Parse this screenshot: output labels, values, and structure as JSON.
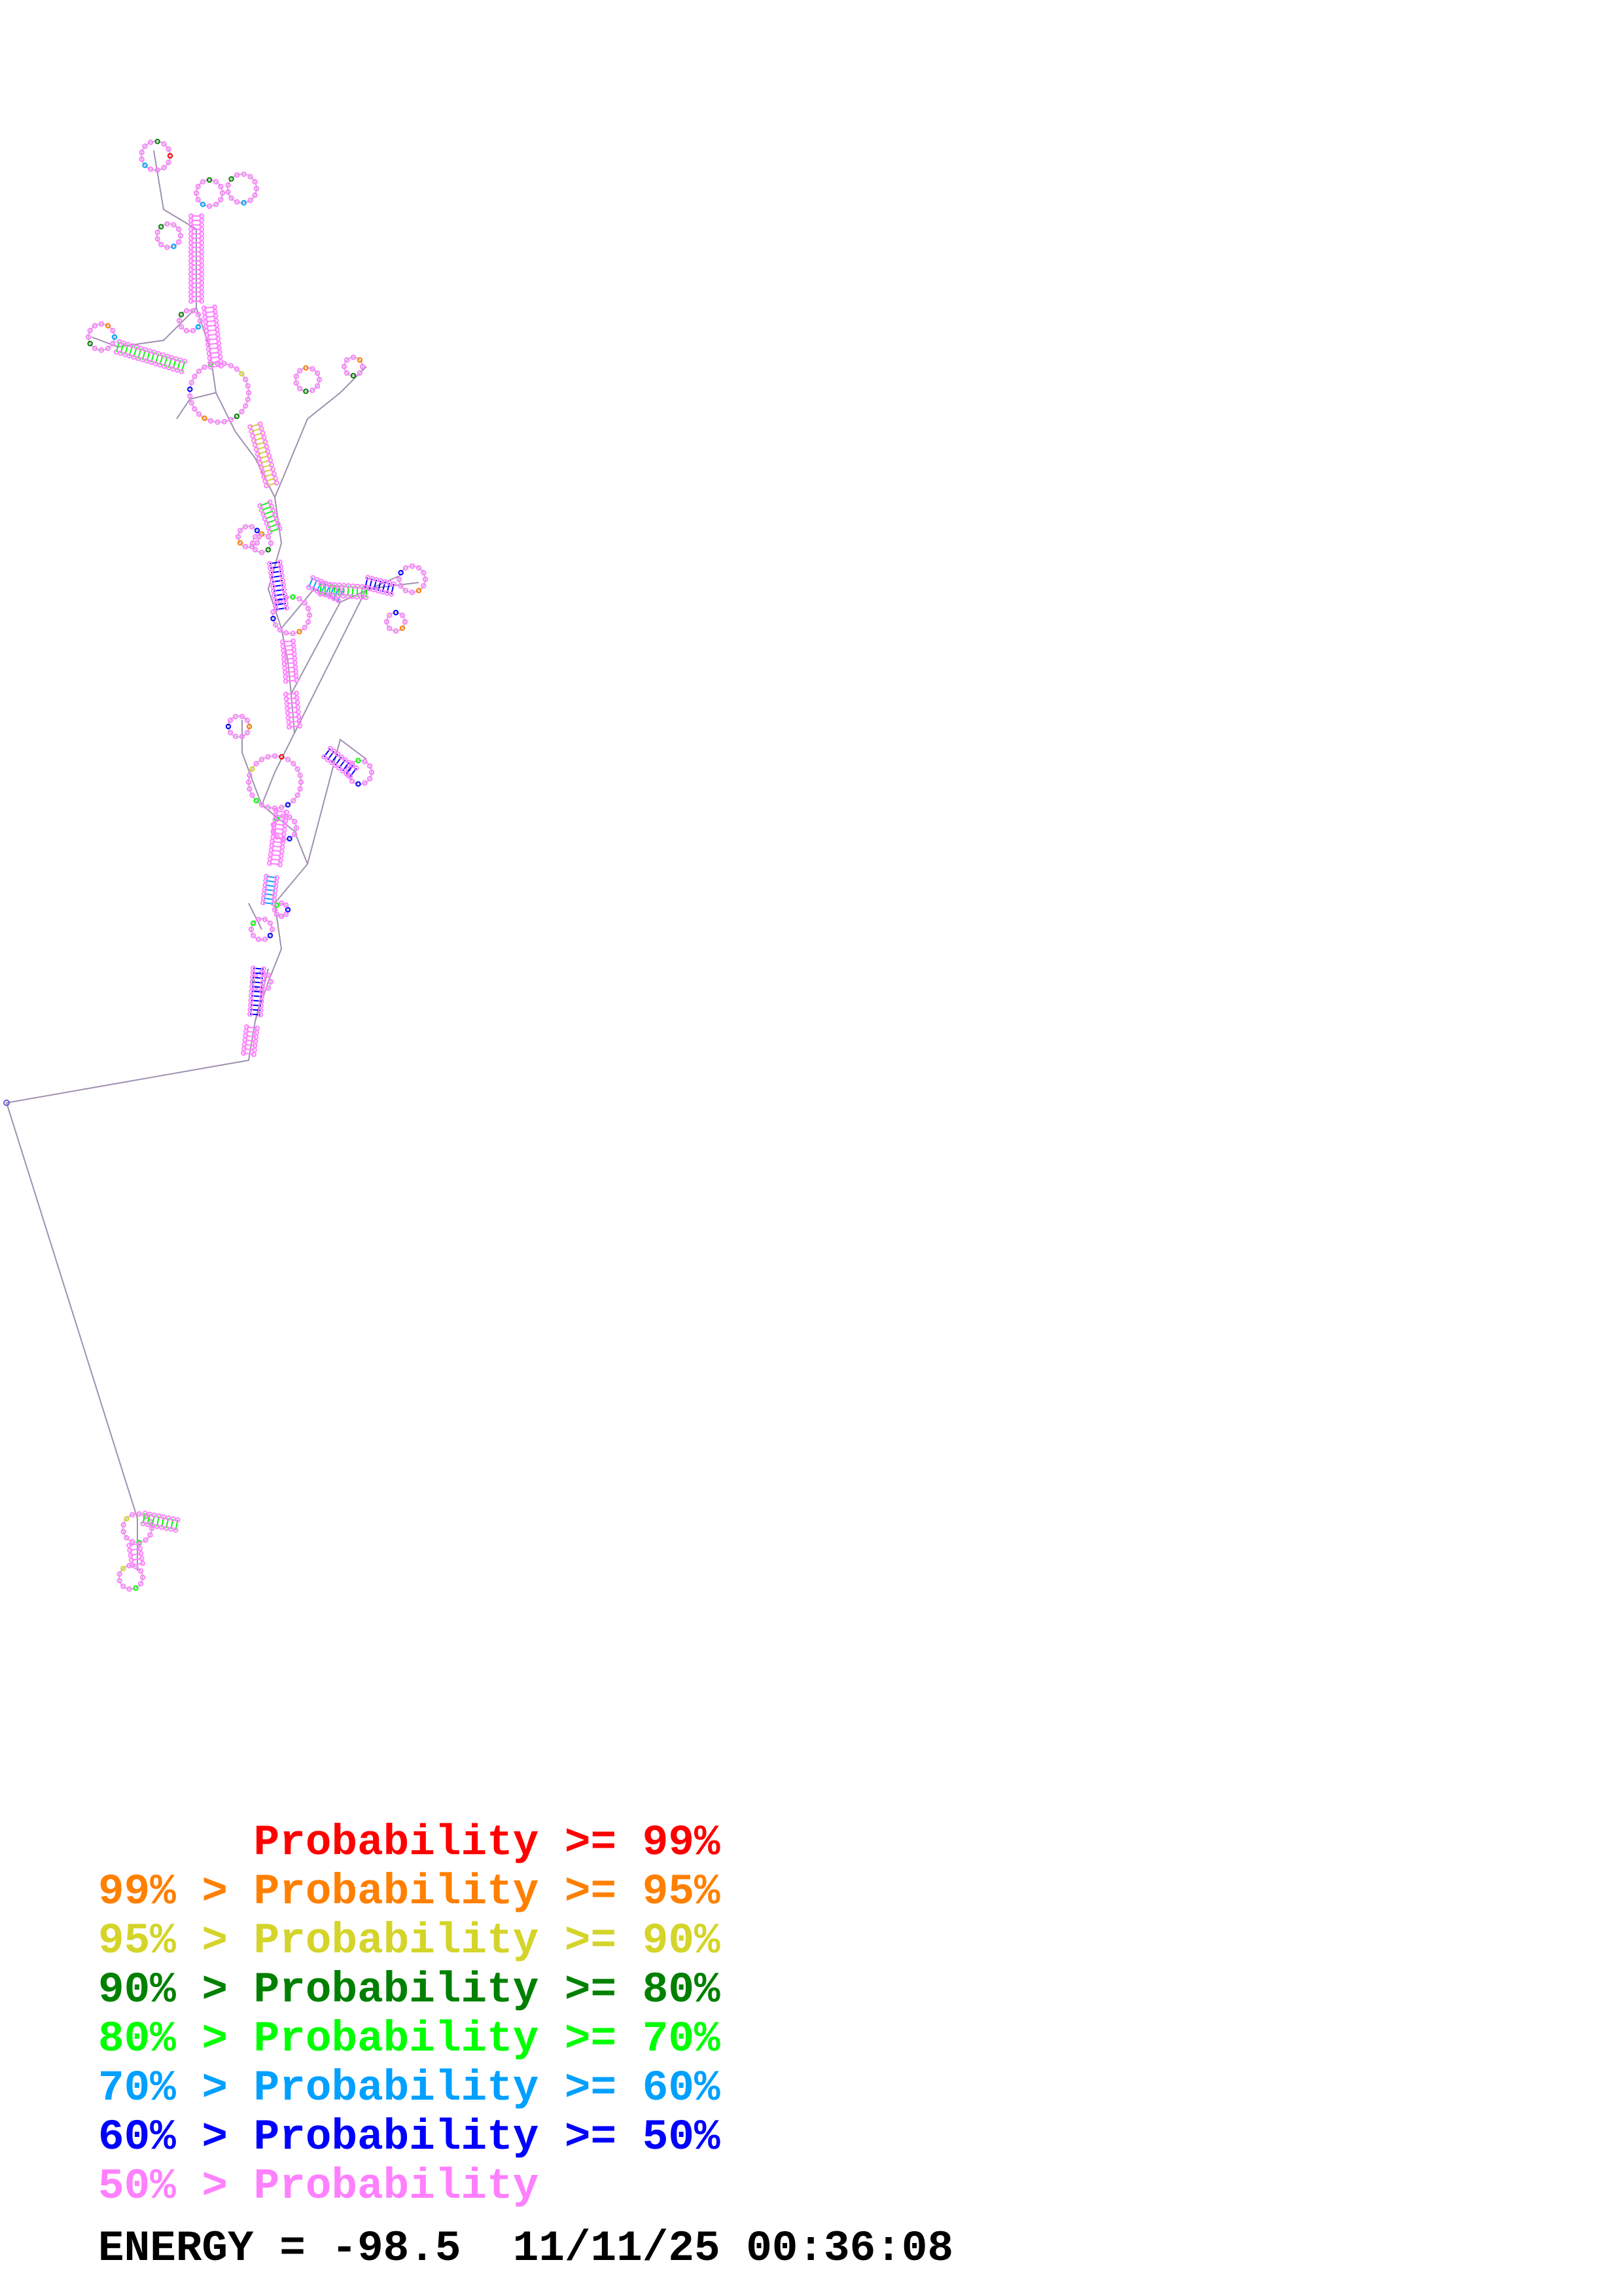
{
  "legend": [
    {
      "prefix": "",
      "label": "Probability >= 99%",
      "color": "#ff0000"
    },
    {
      "prefix": "99% > ",
      "label": "Probability >= 95%",
      "color": "#ff8000"
    },
    {
      "prefix": "95% > ",
      "label": "Probability >= 90%",
      "color": "#d4d42a"
    },
    {
      "prefix": "90% > ",
      "label": "Probability >= 80%",
      "color": "#008000"
    },
    {
      "prefix": "80% > ",
      "label": "Probability >= 70%",
      "color": "#00ff00"
    },
    {
      "prefix": "70% > ",
      "label": "Probability >= 60%",
      "color": "#00a0ff"
    },
    {
      "prefix": "60% > ",
      "label": "Probability >= 50%",
      "color": "#0000ff"
    },
    {
      "prefix": "50% > ",
      "label": "Probability",
      "color": "#ff80ff"
    }
  ],
  "footer": {
    "energy_label": "ENERGY = ",
    "energy_value": "-98.5",
    "date": "11/11/25",
    "time": "00:36:08"
  },
  "structure": {
    "backbone_color": "#a090b0",
    "pair_color_dominant": "#ff80ff"
  }
}
